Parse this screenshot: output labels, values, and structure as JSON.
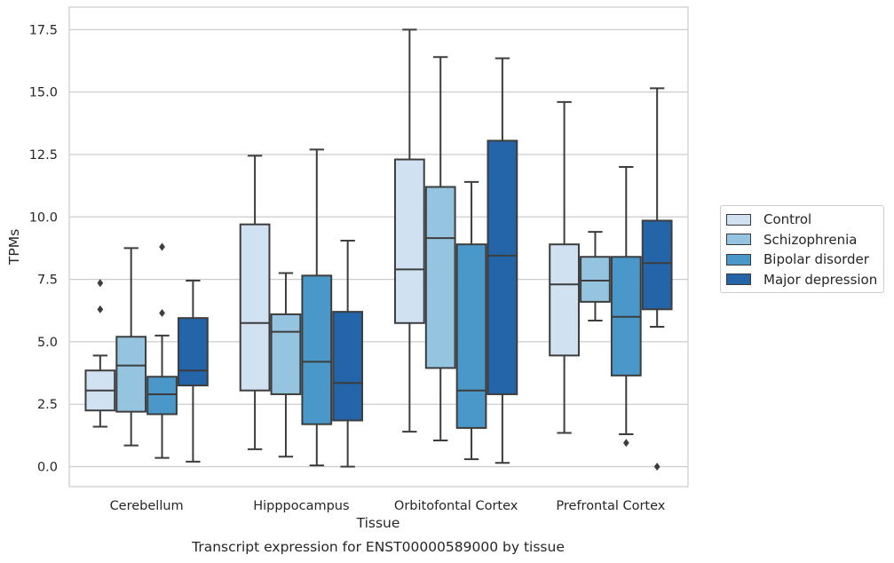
{
  "chart_data": {
    "type": "boxplot",
    "xlabel": "Tissue",
    "ylabel": "TPMs",
    "caption": "Transcript expression for ENST00000589000 by tissue",
    "ylim": [
      -0.8,
      18.4
    ],
    "yticks": [
      "0.0",
      "2.5",
      "5.0",
      "7.5",
      "10.0",
      "12.5",
      "15.0",
      "17.5"
    ],
    "grid": "horizontal",
    "legend_position": "right",
    "categories": [
      "Cerebellum",
      "Hipppocampus",
      "Orbitofontal Cortex",
      "Prefrontal Cortex"
    ],
    "series": [
      {
        "name": "Control",
        "color": "#d0e1f2",
        "boxes": [
          {
            "whisker_low": 1.6,
            "q1": 2.25,
            "median": 3.05,
            "q3": 3.85,
            "whisker_high": 4.45,
            "outliers": [
              6.3,
              7.35
            ]
          },
          {
            "whisker_low": 0.7,
            "q1": 3.05,
            "median": 5.75,
            "q3": 9.7,
            "whisker_high": 12.45,
            "outliers": []
          },
          {
            "whisker_low": 1.4,
            "q1": 5.75,
            "median": 7.9,
            "q3": 12.3,
            "whisker_high": 17.5,
            "outliers": []
          },
          {
            "whisker_low": 1.35,
            "q1": 4.45,
            "median": 7.3,
            "q3": 8.9,
            "whisker_high": 14.6,
            "outliers": []
          }
        ]
      },
      {
        "name": "Schizophrenia",
        "color": "#94c4df",
        "boxes": [
          {
            "whisker_low": 0.85,
            "q1": 2.2,
            "median": 4.05,
            "q3": 5.2,
            "whisker_high": 8.75,
            "outliers": []
          },
          {
            "whisker_low": 0.4,
            "q1": 2.9,
            "median": 5.4,
            "q3": 6.1,
            "whisker_high": 7.75,
            "outliers": []
          },
          {
            "whisker_low": 1.05,
            "q1": 3.95,
            "median": 9.15,
            "q3": 11.2,
            "whisker_high": 16.4,
            "outliers": []
          },
          {
            "whisker_low": 5.85,
            "q1": 6.6,
            "median": 7.45,
            "q3": 8.4,
            "whisker_high": 9.4,
            "outliers": []
          }
        ]
      },
      {
        "name": "Bipolar disorder",
        "color": "#4a98c9",
        "boxes": [
          {
            "whisker_low": 0.35,
            "q1": 2.1,
            "median": 2.9,
            "q3": 3.6,
            "whisker_high": 5.25,
            "outliers": [
              6.15,
              8.8
            ]
          },
          {
            "whisker_low": 0.05,
            "q1": 1.7,
            "median": 4.2,
            "q3": 7.65,
            "whisker_high": 12.7,
            "outliers": []
          },
          {
            "whisker_low": 0.3,
            "q1": 1.55,
            "median": 3.05,
            "q3": 8.9,
            "whisker_high": 11.4,
            "outliers": []
          },
          {
            "whisker_low": 1.3,
            "q1": 3.65,
            "median": 6.0,
            "q3": 8.4,
            "whisker_high": 12.0,
            "outliers": [
              0.95
            ]
          }
        ]
      },
      {
        "name": "Major depression",
        "color": "#2464a8",
        "boxes": [
          {
            "whisker_low": 0.2,
            "q1": 3.25,
            "median": 3.85,
            "q3": 5.95,
            "whisker_high": 7.45,
            "outliers": []
          },
          {
            "whisker_low": 0.0,
            "q1": 1.85,
            "median": 3.35,
            "q3": 6.2,
            "whisker_high": 9.05,
            "outliers": []
          },
          {
            "whisker_low": 0.15,
            "q1": 2.9,
            "median": 8.45,
            "q3": 13.05,
            "whisker_high": 16.35,
            "outliers": []
          },
          {
            "whisker_low": 5.6,
            "q1": 6.3,
            "median": 8.15,
            "q3": 9.85,
            "whisker_high": 15.15,
            "outliers": [
              0.0
            ]
          }
        ]
      }
    ]
  }
}
